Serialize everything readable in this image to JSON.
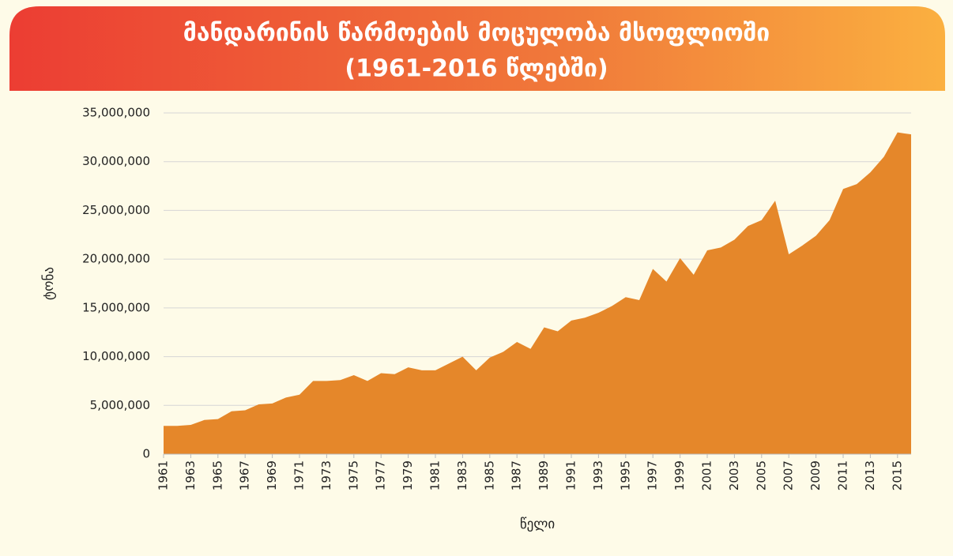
{
  "chart_data": {
    "type": "area",
    "title": "მანდარინის წარმოების მოცულობა მსოფლიოში",
    "subtitle": "(1961-2016 წლებში)",
    "x_label": "წელი",
    "y_label": "ტონა",
    "x": [
      1961,
      1962,
      1963,
      1964,
      1965,
      1966,
      1967,
      1968,
      1969,
      1970,
      1971,
      1972,
      1973,
      1974,
      1975,
      1976,
      1977,
      1978,
      1979,
      1980,
      1981,
      1982,
      1983,
      1984,
      1985,
      1986,
      1987,
      1988,
      1989,
      1990,
      1991,
      1992,
      1993,
      1994,
      1995,
      1996,
      1997,
      1998,
      1999,
      2000,
      2001,
      2002,
      2003,
      2004,
      2005,
      2006,
      2007,
      2008,
      2009,
      2010,
      2011,
      2012,
      2013,
      2014,
      2015,
      2016
    ],
    "values": [
      2900000,
      2900000,
      3000000,
      3500000,
      3600000,
      4400000,
      4500000,
      5100000,
      5200000,
      5800000,
      6100000,
      7500000,
      7500000,
      7600000,
      8100000,
      7500000,
      8300000,
      8200000,
      8900000,
      8600000,
      8600000,
      9300000,
      10000000,
      8600000,
      9900000,
      10500000,
      11500000,
      10800000,
      13000000,
      12600000,
      13700000,
      14000000,
      14500000,
      15200000,
      16100000,
      15800000,
      19000000,
      17700000,
      20100000,
      18400000,
      20900000,
      21200000,
      22000000,
      23400000,
      24000000,
      26000000,
      20500000,
      21400000,
      22400000,
      24000000,
      27200000,
      27700000,
      28900000,
      30500000,
      33000000,
      32800000
    ],
    "color": "#e5872a",
    "xlim": [
      1961,
      2016
    ],
    "xticks": [
      1961,
      1963,
      1965,
      1967,
      1969,
      1971,
      1973,
      1975,
      1977,
      1979,
      1981,
      1983,
      1985,
      1987,
      1989,
      1991,
      1993,
      1995,
      1997,
      1999,
      2001,
      2003,
      2005,
      2007,
      2009,
      2011,
      2013,
      2015
    ],
    "ylim": [
      0,
      35000000
    ],
    "yticks": [
      0,
      {
        "value": 5000000,
        "label": "5,000,000"
      },
      {
        "value": 10000000,
        "label": "10,000,000"
      },
      {
        "value": 15000000,
        "label": "15,000,000"
      },
      {
        "value": 20000000,
        "label": "20,000,000"
      },
      {
        "value": 25000000,
        "label": "25,000,000"
      },
      {
        "value": 30000000,
        "label": "30,000,000"
      },
      {
        "value": 35000000,
        "label": "35,000,000"
      }
    ],
    "grid": true
  }
}
